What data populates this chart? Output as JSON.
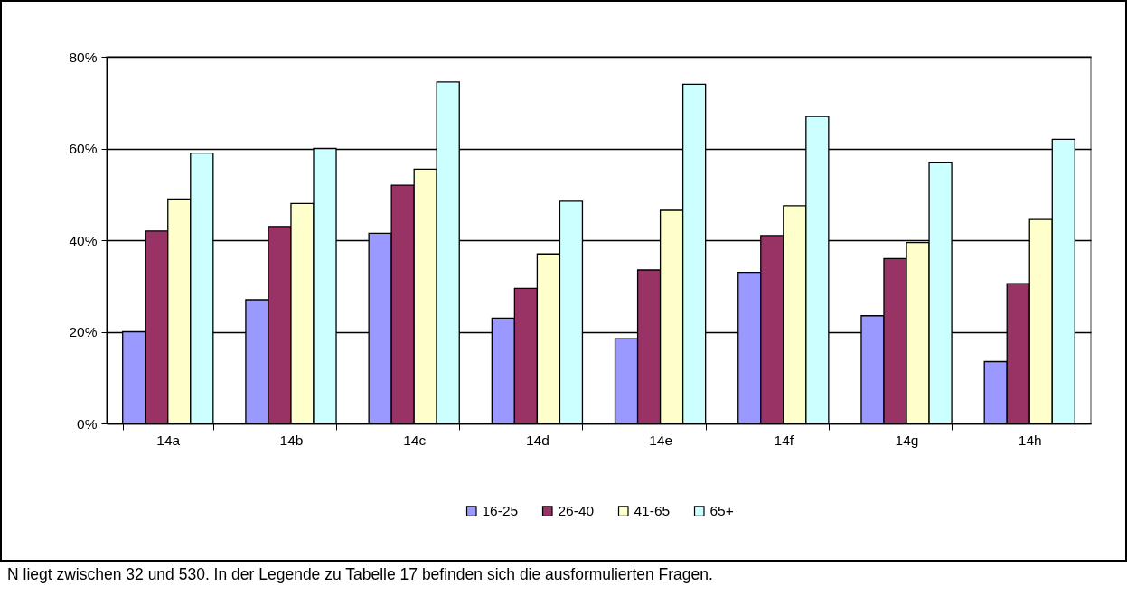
{
  "chart_data": {
    "type": "bar",
    "categories": [
      "14a",
      "14b",
      "14c",
      "14d",
      "14e",
      "14f",
      "14g",
      "14h"
    ],
    "series": [
      {
        "name": "16-25",
        "color": "#9999ff",
        "values": [
          20,
          27,
          41.5,
          23,
          18.5,
          33,
          23.5,
          13.5
        ]
      },
      {
        "name": "26-40",
        "color": "#993366",
        "values": [
          42,
          43,
          52,
          29.5,
          33.5,
          41,
          36,
          30.5
        ]
      },
      {
        "name": "41-65",
        "color": "#ffffcc",
        "values": [
          49,
          48,
          55.5,
          37,
          46.5,
          47.5,
          39.5,
          44.5
        ]
      },
      {
        "name": "65+",
        "color": "#ccffff",
        "values": [
          59,
          60,
          74.5,
          48.5,
          74,
          67,
          57,
          62
        ]
      }
    ],
    "ylim": [
      0,
      80
    ],
    "yticks": [
      {
        "value": 0,
        "label": "0%"
      },
      {
        "value": 20,
        "label": "20%"
      },
      {
        "value": 40,
        "label": "40%"
      },
      {
        "value": 60,
        "label": "60%"
      },
      {
        "value": 80,
        "label": "80%"
      }
    ],
    "grid": "y",
    "legend": "bottom",
    "annotations": [
      "N liegt zwischen 32 und 530. In der Legende zu Tabelle 17 befinden sich die ausformulierten Fragen."
    ]
  }
}
